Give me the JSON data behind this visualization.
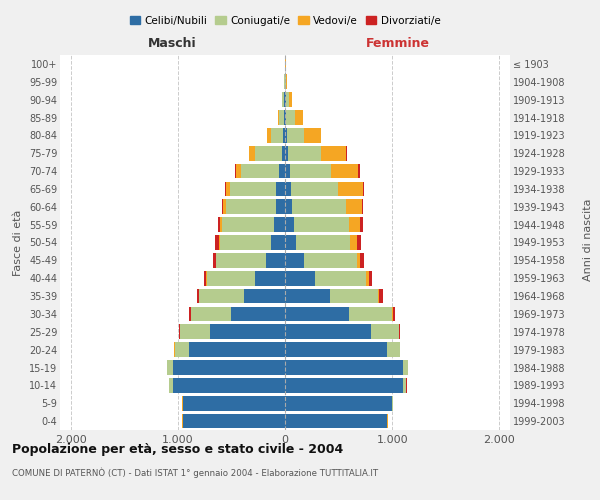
{
  "age_groups": [
    "0-4",
    "5-9",
    "10-14",
    "15-19",
    "20-24",
    "25-29",
    "30-34",
    "35-39",
    "40-44",
    "45-49",
    "50-54",
    "55-59",
    "60-64",
    "65-69",
    "70-74",
    "75-79",
    "80-84",
    "85-89",
    "90-94",
    "95-99",
    "100+"
  ],
  "birth_years": [
    "1999-2003",
    "1994-1998",
    "1989-1993",
    "1984-1988",
    "1979-1983",
    "1974-1978",
    "1969-1973",
    "1964-1968",
    "1959-1963",
    "1954-1958",
    "1949-1953",
    "1944-1948",
    "1939-1943",
    "1934-1938",
    "1929-1933",
    "1924-1928",
    "1919-1923",
    "1914-1918",
    "1909-1913",
    "1904-1908",
    "≤ 1903"
  ],
  "male": {
    "celibi": [
      950,
      950,
      1050,
      1050,
      900,
      700,
      500,
      380,
      280,
      180,
      130,
      100,
      80,
      80,
      60,
      30,
      15,
      10,
      5,
      4,
      2
    ],
    "coniugati": [
      5,
      5,
      30,
      50,
      130,
      280,
      380,
      420,
      450,
      460,
      480,
      490,
      470,
      430,
      350,
      250,
      120,
      50,
      20,
      5,
      2
    ],
    "vedovi": [
      2,
      2,
      2,
      2,
      2,
      2,
      2,
      2,
      5,
      5,
      10,
      15,
      25,
      40,
      50,
      55,
      30,
      10,
      5,
      2,
      0
    ],
    "divorziati": [
      2,
      2,
      2,
      2,
      5,
      5,
      15,
      20,
      25,
      25,
      30,
      20,
      10,
      10,
      10,
      5,
      2,
      0,
      0,
      0,
      0
    ]
  },
  "female": {
    "nubili": [
      950,
      1000,
      1100,
      1100,
      950,
      800,
      600,
      420,
      280,
      180,
      100,
      80,
      65,
      55,
      45,
      25,
      15,
      10,
      8,
      4,
      2
    ],
    "coniugate": [
      5,
      5,
      30,
      45,
      120,
      260,
      400,
      450,
      480,
      490,
      510,
      520,
      500,
      440,
      380,
      310,
      160,
      80,
      25,
      5,
      2
    ],
    "vedove": [
      2,
      2,
      2,
      2,
      2,
      5,
      5,
      10,
      20,
      30,
      60,
      100,
      150,
      230,
      260,
      230,
      160,
      80,
      30,
      5,
      2
    ],
    "divorziate": [
      2,
      2,
      2,
      2,
      5,
      8,
      20,
      30,
      35,
      35,
      40,
      25,
      15,
      15,
      15,
      10,
      5,
      2,
      0,
      0,
      0
    ]
  },
  "colors": {
    "celibi": "#2e6da4",
    "coniugati": "#b5cc8e",
    "vedovi": "#f5a623",
    "divorziati": "#cc2222"
  },
  "title": "Popolazione per età, sesso e stato civile - 2004",
  "subtitle": "COMUNE DI PATERNÒ (CT) - Dati ISTAT 1° gennaio 2004 - Elaborazione TUTTITALIA.IT",
  "xlabel_left": "Maschi",
  "xlabel_right": "Femmine",
  "ylabel_left": "Fasce di età",
  "ylabel_right": "Anni di nascita",
  "xlim": 2100,
  "legend_labels": [
    "Celibi/Nubili",
    "Coniugati/e",
    "Vedovi/e",
    "Divorziati/e"
  ],
  "bg_color": "#f0f0f0",
  "plot_bg_color": "#ffffff"
}
